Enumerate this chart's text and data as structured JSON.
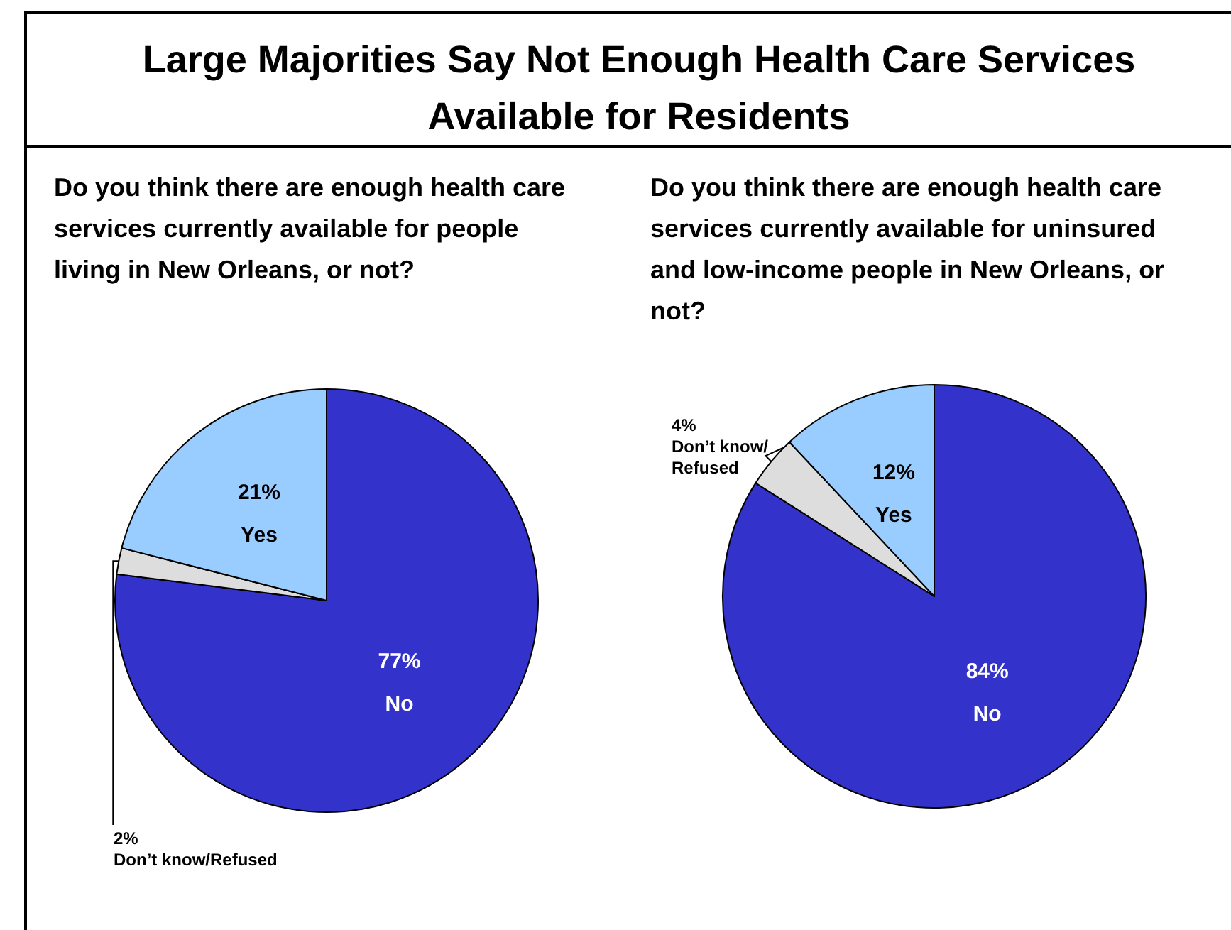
{
  "chart_data": [
    {
      "type": "pie",
      "title": "Large Majorities Say Not Enough Health Care Services Available for Residents",
      "subtitle": "Do you think there are enough health care services currently available for people living in New Orleans, or not?",
      "categories": [
        "No",
        "Don’t know/Refused",
        "Yes"
      ],
      "values": [
        77,
        2,
        21
      ],
      "colors": [
        "#3333cc",
        "#dddddd",
        "#99ccff"
      ],
      "value_labels": [
        "77%",
        "2%",
        "21%"
      ],
      "legend": false
    },
    {
      "type": "pie",
      "subtitle": "Do you think there are enough health care services currently available for uninsured and low-income people in New Orleans, or not?",
      "categories": [
        "No",
        "Don’t know/Refused",
        "Yes"
      ],
      "values": [
        84,
        4,
        12
      ],
      "colors": [
        "#3333cc",
        "#dddddd",
        "#99ccff"
      ],
      "value_labels": [
        "84%",
        "4%",
        "12%"
      ],
      "legend": false
    }
  ]
}
